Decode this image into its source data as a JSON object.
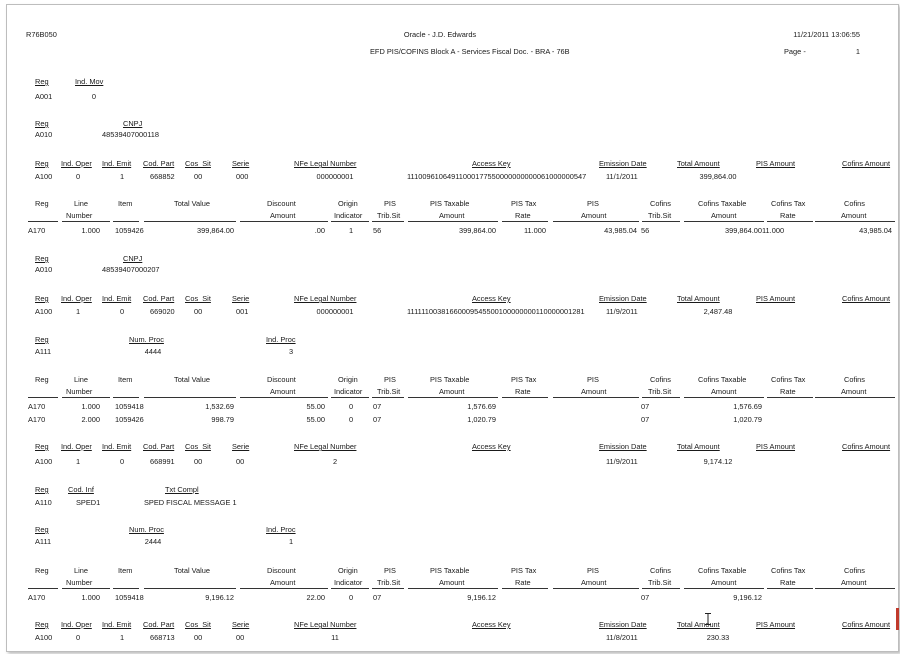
{
  "header": {
    "report_id": "R76B050",
    "company": "Oracle - J.D. Edwards",
    "datetime": "11/21/2011  13:06:55",
    "subtitle": "EFD PIS/COFINS Block A - Services Fiscal Doc. - BRA - 76B",
    "page_label": "Page -",
    "page_number": "1"
  },
  "common_labels": {
    "reg": "Reg",
    "ind_mov": "Ind. Mov",
    "cnpj": "CNPJ",
    "ind_oper": "Ind. Oper",
    "ind_emit": "Ind. Emit",
    "cod_part": "Cod. Part",
    "cos_sit": "Cos_Sit",
    "serie": "Serie",
    "nfe_legal_number": "NFe Legal Number",
    "access_key": "Access Key",
    "emission_date": "Emission Date",
    "total_amount": "Total Amount",
    "pis_amount": "PIS Amount",
    "cofins_amount": "Cofins Amount",
    "line": "Line",
    "number": "Number",
    "item": "Item",
    "total_value": "Total Value",
    "discount": "Discount",
    "amount": "Amount",
    "origin": "Origin",
    "indicator": "Indicator",
    "pis": "PIS",
    "trib_sit": "Trib.Sit",
    "pis_taxable": "PIS Taxable",
    "pis_tax": "PIS Tax",
    "rate": "Rate",
    "cofins": "Cofins",
    "cofins_taxable": "Cofins Taxable",
    "cofins_tax": "Cofins Tax",
    "num_proc": "Num. Proc",
    "ind_proc": "Ind. Proc",
    "cod_inf": "Cod. Inf",
    "txt_compl": "Txt Compl"
  },
  "a001": {
    "reg": "A001",
    "ind_mov": "0"
  },
  "a010_1": {
    "reg": "A010",
    "cnpj": "48539407000118"
  },
  "a100_1": {
    "reg": "A100",
    "ind_oper": "0",
    "ind_emit": "1",
    "cod_part": "668852",
    "cos_sit": "00",
    "serie": "000",
    "nfe": "000000001",
    "access_key": "11100961064911000177550000000000061000000547",
    "date": "11/1/2011",
    "total": "399,864.00"
  },
  "a170_1": {
    "reg": "A170",
    "line": "1.000",
    "item": "1059426",
    "total_value": "399,864.00",
    "discount": ".00",
    "origin": "1",
    "pis_sit": "56",
    "pis_taxable": "399,864.00",
    "pis_rate": "11.000",
    "pis_amount": "43,985.04",
    "cofins_sit": "56",
    "cofins_taxable": "399,864.00",
    "cofins_rate": "11.000",
    "cofins_amount": "43,985.04"
  },
  "a010_2": {
    "reg": "A010",
    "cnpj": "48539407000207"
  },
  "a100_2": {
    "reg": "A100",
    "ind_oper": "1",
    "ind_emit": "0",
    "cod_part": "669020",
    "cos_sit": "00",
    "serie": "001",
    "nfe": "000000001",
    "access_key": "11111100381660009545500100000000110000001281",
    "date": "11/9/2011",
    "total": "2,487.48"
  },
  "a111_1": {
    "reg": "A111",
    "num_proc": "4444",
    "ind_proc": "3"
  },
  "a170_2": {
    "reg": "A170",
    "line": "1.000",
    "item": "1059418",
    "total_value": "1,532.69",
    "discount": "55.00",
    "origin": "0",
    "pis_sit": "07",
    "pis_taxable": "1,576.69",
    "cofins_sit": "07",
    "cofins_taxable": "1,576.69"
  },
  "a170_3": {
    "reg": "A170",
    "line": "2.000",
    "item": "1059426",
    "total_value": "998.79",
    "discount": "55.00",
    "origin": "0",
    "pis_sit": "07",
    "pis_taxable": "1,020.79",
    "cofins_sit": "07",
    "cofins_taxable": "1,020.79"
  },
  "a100_3": {
    "reg": "A100",
    "ind_oper": "1",
    "ind_emit": "0",
    "cod_part": "668991",
    "cos_sit": "00",
    "serie": "00",
    "nfe": "2",
    "date": "11/9/2011",
    "total": "9,174.12"
  },
  "a110_1": {
    "reg": "A110",
    "cod_inf": "SPED1",
    "txt_compl": "SPED FISCAL MESSAGE 1"
  },
  "a111_2": {
    "reg": "A111",
    "num_proc": "2444",
    "ind_proc": "1"
  },
  "a170_4": {
    "reg": "A170",
    "line": "1.000",
    "item": "1059418",
    "total_value": "9,196.12",
    "discount": "22.00",
    "origin": "0",
    "pis_sit": "07",
    "pis_taxable": "9,196.12",
    "cofins_sit": "07",
    "cofins_taxable": "9,196.12"
  },
  "a100_4": {
    "reg": "A100",
    "ind_oper": "0",
    "ind_emit": "1",
    "cod_part": "668713",
    "cos_sit": "00",
    "serie": "00",
    "nfe": "11",
    "date": "11/8/2011",
    "total": "230.33"
  },
  "icons": {
    "cursor": "text-cursor-icon"
  },
  "colors": {
    "ink": "#1a1a1a",
    "frame": "#bdbdbd",
    "marker": "#c0392b"
  }
}
